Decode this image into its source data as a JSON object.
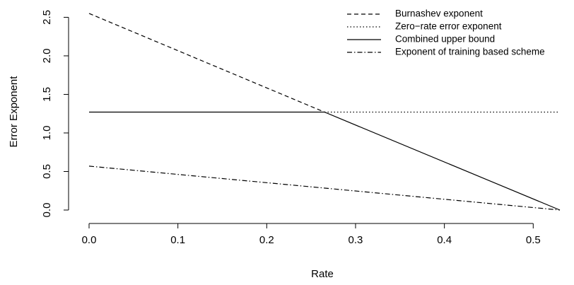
{
  "chart_data": {
    "type": "line",
    "title": "",
    "xlabel": "Rate",
    "ylabel": "Error Exponent",
    "xlim": [
      0.0,
      0.53
    ],
    "ylim": [
      0.0,
      2.55
    ],
    "x_ticks": [
      0.0,
      0.1,
      0.2,
      0.3,
      0.4,
      0.5
    ],
    "y_ticks": [
      0.0,
      0.5,
      1.0,
      1.5,
      2.0,
      2.5
    ],
    "x_tick_labels": [
      "0.0",
      "0.1",
      "0.2",
      "0.3",
      "0.4",
      "0.5"
    ],
    "y_tick_labels": [
      "0.0",
      "0.5",
      "1.0",
      "1.5",
      "2.0",
      "2.5"
    ],
    "grid": false,
    "legend_position": "top-right",
    "series": [
      {
        "name": "Burnashev exponent",
        "style": "dashed",
        "color": "#000000",
        "x": [
          0.0,
          0.265
        ],
        "y": [
          2.55,
          1.27
        ]
      },
      {
        "name": "Zero−rate error exponent",
        "style": "dotted",
        "color": "#000000",
        "x": [
          0.265,
          0.53
        ],
        "y": [
          1.27,
          1.27
        ]
      },
      {
        "name": "Combined upper bound",
        "style": "solid",
        "color": "#000000",
        "x": [
          0.0,
          0.265,
          0.53
        ],
        "y": [
          1.27,
          1.27,
          0.0
        ]
      },
      {
        "name": "Exponent of training based scheme",
        "style": "dashdot",
        "color": "#000000",
        "x": [
          0.0,
          0.53
        ],
        "y": [
          0.57,
          0.0
        ]
      }
    ]
  }
}
